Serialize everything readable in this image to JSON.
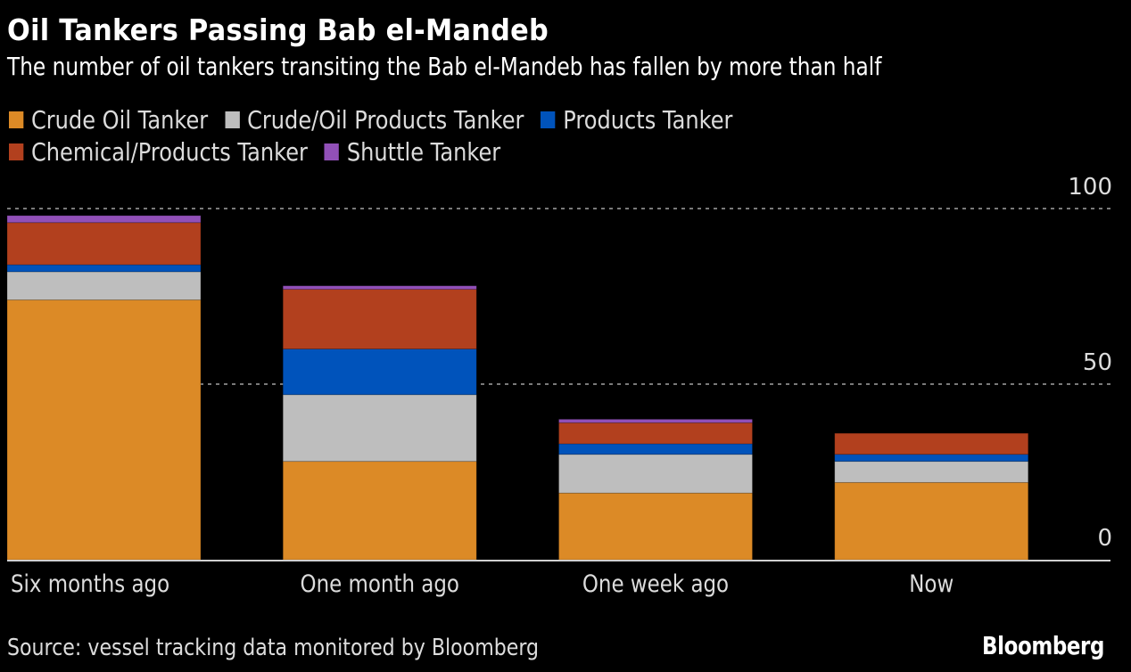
{
  "chart_data": {
    "type": "bar",
    "stacked": true,
    "title": "Oil Tankers Passing Bab el-Mandeb",
    "subtitle": "The number of oil tankers transiting the Bab el-Mandeb has fallen by more than half",
    "categories": [
      "Six months ago",
      "One month ago",
      "One week ago",
      "Now"
    ],
    "series": [
      {
        "name": "Crude Oil Tanker",
        "color": "#DC8A26",
        "values": [
          74,
          28,
          19,
          22
        ]
      },
      {
        "name": "Crude/Oil Products Tanker",
        "color": "#BEBEBE",
        "values": [
          8,
          19,
          11,
          6
        ]
      },
      {
        "name": "Products Tanker",
        "color": "#0053BB",
        "values": [
          2,
          13,
          3,
          2
        ]
      },
      {
        "name": "Chemical/Products Tanker",
        "color": "#B2401E",
        "values": [
          12,
          17,
          6,
          6
        ]
      },
      {
        "name": "Shuttle Tanker",
        "color": "#9150B8",
        "values": [
          2,
          1,
          1,
          0
        ]
      }
    ],
    "xlabel": "",
    "ylabel": "",
    "ylim": [
      0,
      100
    ],
    "yticks": [
      0,
      50,
      100
    ],
    "grid": true,
    "yaxis_side": "right",
    "legend_position": "top-left",
    "source": "Source: vessel tracking data monitored by Bloomberg",
    "brand": "Bloomberg"
  }
}
